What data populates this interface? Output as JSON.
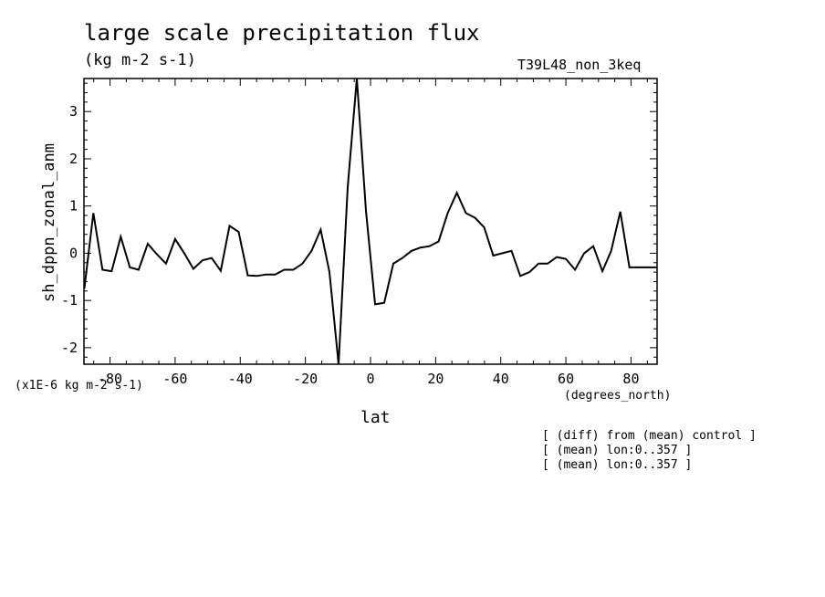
{
  "chart_data": {
    "type": "line",
    "title": "large scale precipitation flux",
    "subtitle": "(kg m-2 s-1)",
    "run_label": "T39L48_non_3keq",
    "ylabel": "sh_dppn_zonal_anm",
    "yunits": "(x1E-6 kg m-2 s-1)",
    "xlabel": "lat",
    "xunits": "(degrees_north)",
    "notes": [
      "[ (diff) from (mean) control ]",
      "[ (mean) lon:0..357 ]",
      "[ (mean) lon:0..357 ]"
    ],
    "xlim": [
      -88,
      88
    ],
    "ylim": [
      -2.35,
      3.7
    ],
    "xticks": [
      -80,
      -60,
      -40,
      -20,
      0,
      20,
      40,
      60,
      80
    ],
    "xtick_labels": [
      "-80",
      "-60",
      "-40",
      "-20",
      "0",
      "20",
      "40",
      "60",
      "80"
    ],
    "yticks": [
      -2,
      -1,
      0,
      1,
      2,
      3
    ],
    "ytick_labels": [
      "-2",
      "-1",
      "0",
      "1",
      "2",
      "3"
    ],
    "grid": false,
    "series": [
      {
        "color": "#000000",
        "x": [
          -87.9,
          -85.1,
          -82.3,
          -79.5,
          -76.7,
          -73.9,
          -71.2,
          -68.4,
          -65.6,
          -62.8,
          -60.0,
          -57.2,
          -54.4,
          -51.6,
          -48.8,
          -46.0,
          -43.3,
          -40.5,
          -37.7,
          -34.9,
          -32.1,
          -29.3,
          -26.5,
          -23.7,
          -20.9,
          -18.1,
          -15.3,
          -12.6,
          -9.8,
          -7.0,
          -4.2,
          -1.4,
          1.4,
          4.2,
          7.0,
          9.8,
          12.6,
          15.3,
          18.1,
          20.9,
          23.7,
          26.5,
          29.3,
          32.1,
          34.9,
          37.7,
          40.5,
          43.3,
          46.0,
          48.8,
          51.6,
          54.4,
          57.2,
          60.0,
          62.8,
          65.6,
          68.4,
          71.2,
          73.9,
          76.7,
          79.5,
          82.3,
          85.1,
          87.9
        ],
        "y": [
          -0.75,
          0.85,
          -0.35,
          -0.38,
          0.35,
          -0.3,
          -0.35,
          0.2,
          -0.02,
          -0.22,
          0.3,
          0.0,
          -0.33,
          -0.15,
          -0.1,
          -0.37,
          0.58,
          0.45,
          -0.47,
          -0.48,
          -0.45,
          -0.45,
          -0.35,
          -0.35,
          -0.22,
          0.05,
          0.5,
          -0.4,
          -2.35,
          1.4,
          3.7,
          0.9,
          -1.08,
          -1.05,
          -0.22,
          -0.1,
          0.05,
          0.12,
          0.15,
          0.25,
          0.85,
          1.28,
          0.85,
          0.75,
          0.55,
          -0.05,
          0.0,
          0.05,
          -0.48,
          -0.4,
          -0.22,
          -0.22,
          -0.08,
          -0.12,
          -0.35,
          0.0,
          0.15,
          -0.38,
          0.05,
          0.88,
          -0.3,
          -0.3,
          -0.3,
          -0.3
        ]
      }
    ]
  }
}
